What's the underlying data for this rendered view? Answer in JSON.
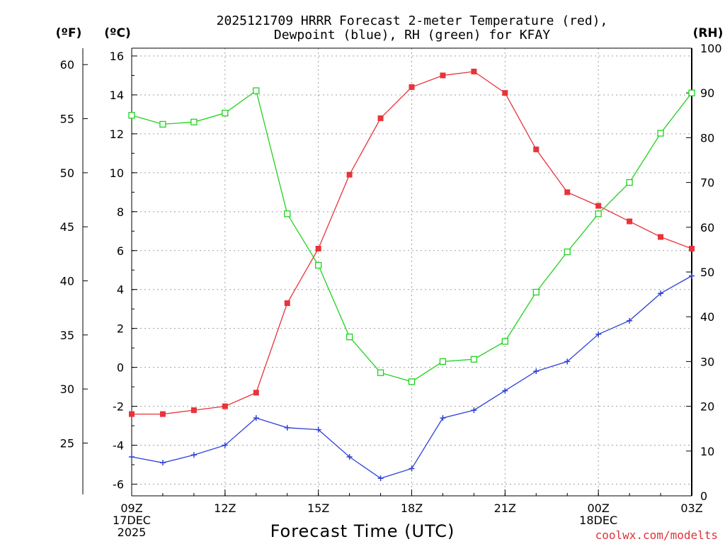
{
  "chart_data": {
    "type": "line",
    "title_lines": [
      "2025121709 HRRR Forecast 2-meter Temperature (red),",
      "Dewpoint (blue), RH (green) for KFAY"
    ],
    "xlabel": "Forecast Time (UTC)",
    "y_left_label": "(ºC)",
    "y_far_left_label": "(ºF)",
    "y_right_label": "(RH)",
    "watermark": "coolwx.com/modelts",
    "x_hours": [
      0,
      1,
      2,
      3,
      4,
      5,
      6,
      7,
      8,
      9,
      10,
      11,
      12,
      13,
      14,
      15,
      16,
      17,
      18
    ],
    "x_ticks": [
      {
        "hour": 0,
        "lines": [
          "09Z",
          "17DEC",
          "2025"
        ]
      },
      {
        "hour": 3,
        "lines": [
          "12Z"
        ]
      },
      {
        "hour": 6,
        "lines": [
          "15Z"
        ]
      },
      {
        "hour": 9,
        "lines": [
          "18Z"
        ]
      },
      {
        "hour": 12,
        "lines": [
          "21Z"
        ]
      },
      {
        "hour": 15,
        "lines": [
          "00Z",
          "18DEC"
        ]
      },
      {
        "hour": 18,
        "lines": [
          "03Z"
        ]
      }
    ],
    "ylim_c": [
      -6.6,
      16.4
    ],
    "ylim_rh": [
      0,
      100
    ],
    "yticks_c": [
      "-6",
      "-4",
      "-2",
      "0",
      "2",
      "4",
      "6",
      "8",
      "10",
      "12",
      "14",
      "16"
    ],
    "yticks_f": [
      "25",
      "30",
      "35",
      "40",
      "45",
      "50",
      "55",
      "60"
    ],
    "yticks_rh": [
      "0",
      "10",
      "20",
      "30",
      "40",
      "50",
      "60",
      "70",
      "80",
      "90",
      "100"
    ],
    "grid": true,
    "series": [
      {
        "name": "Temperature",
        "color": "#e8333a",
        "marker": "filled-square",
        "axis": "C",
        "values": [
          -2.4,
          -2.4,
          -2.2,
          -2.0,
          -1.3,
          3.3,
          6.1,
          9.9,
          12.8,
          14.4,
          15.0,
          15.2,
          14.1,
          11.2,
          9.0,
          8.3,
          7.5,
          6.7,
          6.1
        ]
      },
      {
        "name": "Dewpoint",
        "color": "#2f41d8",
        "marker": "plus",
        "axis": "C",
        "values": [
          -4.6,
          -4.9,
          -4.5,
          -4.0,
          -2.6,
          -3.1,
          -3.2,
          -4.6,
          -5.7,
          -5.2,
          -2.6,
          -2.2,
          -1.2,
          -0.2,
          0.3,
          1.7,
          2.4,
          3.8,
          4.7
        ]
      },
      {
        "name": "RH",
        "color": "#1fd21f",
        "marker": "open-square",
        "axis": "RH",
        "values": [
          85,
          83,
          83.5,
          85.5,
          90.5,
          63,
          51.5,
          35.5,
          27.5,
          25.5,
          30,
          30.5,
          34.5,
          45.5,
          54.5,
          63,
          70,
          81,
          90
        ]
      }
    ]
  }
}
